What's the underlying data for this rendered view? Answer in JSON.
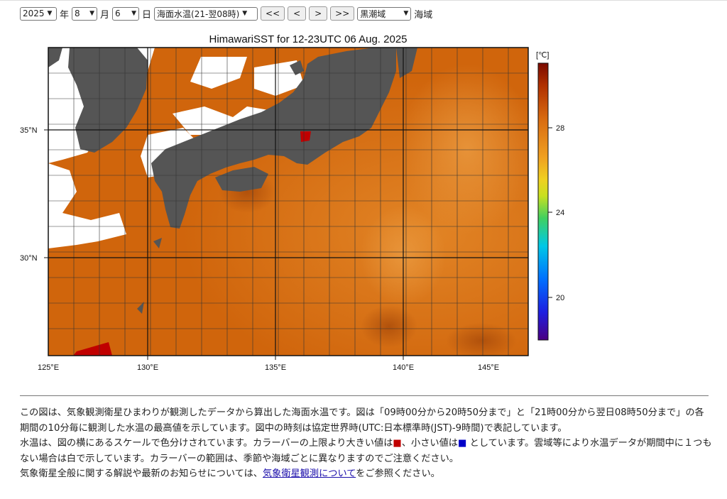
{
  "controls": {
    "year": "2025",
    "year_suffix": "年",
    "month": "8",
    "month_suffix": "月",
    "day": "6",
    "day_suffix": "日",
    "product": "海面水温(21-翌08時)",
    "btn_prev_big": "<<",
    "btn_prev": "<",
    "btn_next": ">",
    "btn_next_big": ">>",
    "region": "黒潮域",
    "region_suffix": "海域"
  },
  "figure": {
    "title": "HimawariSST for 12-23UTC 06 Aug. 2025",
    "colorbar_unit": "[℃]",
    "colorbar_ticks": [
      "28",
      "24",
      "20"
    ],
    "lat_labels": [
      "35°N",
      "30°N"
    ],
    "lon_labels": [
      "125°E",
      "130°E",
      "135°E",
      "140°E",
      "145°E"
    ]
  },
  "description": {
    "p1": "この図は、気象観測衛星ひまわりが観測したデータから算出した海面水温です。図は「09時00分から20時50分まで」と「21時00分から翌日08時50分まで」の各期間の10分毎に観測した水温の最高値を示しています。図中の時刻は協定世界時(UTC:日本標準時(JST)-9時間)で表記しています。",
    "p2_a": "水温は、図の横にあるスケールで色分けされています。カラーバーの上限より大きい値は",
    "red_mark": "■",
    "p2_b": "、小さい値は",
    "blue_mark": "■",
    "p2_c": " としています。雲域等により水温データが期間中に１つもない場合は白で示しています。カラーバーの範囲は、季節や海域ごとに異なりますのでご注意ください。",
    "p3_a": "気象衛星全般に関する解説や最新のお知らせについては、",
    "p3_link": "気象衛星観測について",
    "p3_b": "をご参照ください。"
  },
  "colors": {
    "sea": "#d4680c",
    "sea_warm": "#e07a1a",
    "land": "#555555",
    "cloud": "#ffffff",
    "above_max": "#c00000",
    "below_min": "#0000c8"
  }
}
